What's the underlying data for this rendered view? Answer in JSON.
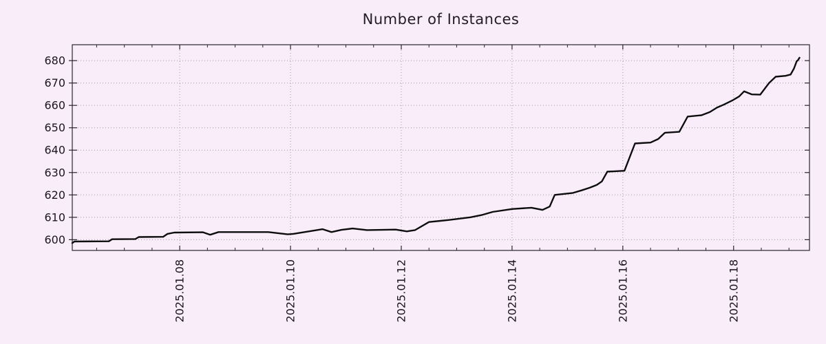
{
  "colors": {
    "background": "#f9edf9",
    "line": "#0d0d0d",
    "grid": "#a39aa3",
    "border": "#2a2430",
    "text": "#1c1522"
  },
  "chart_data": {
    "type": "line",
    "title": "Number of Instances",
    "xlabel": "",
    "ylabel": "",
    "legend": "none",
    "grid": "dotted",
    "x_axis": {
      "kind": "time",
      "unit": "day of 2025-01",
      "range": [
        6.06,
        19.37
      ],
      "tick_positions": [
        8,
        10,
        12,
        14,
        16,
        18
      ],
      "tick_labels": [
        "2025.01.08",
        "2025.01.10",
        "2025.01.12",
        "2025.01.14",
        "2025.01.16",
        "2025.01.18"
      ],
      "minor_tick_step": 0.5,
      "label_rotation_deg": -90
    },
    "y_axis": {
      "range": [
        595.2,
        687.1
      ],
      "tick_positions": [
        600,
        610,
        620,
        630,
        640,
        650,
        660,
        670,
        680
      ],
      "tick_labels": [
        "600",
        "610",
        "620",
        "630",
        "640",
        "650",
        "660",
        "670",
        "680"
      ]
    },
    "series": [
      {
        "color": "#0d0d0d",
        "points": [
          [
            6.06,
            598.5
          ],
          [
            6.1,
            599.2
          ],
          [
            6.72,
            599.3
          ],
          [
            6.78,
            600.2
          ],
          [
            7.2,
            600.3
          ],
          [
            7.26,
            601.2
          ],
          [
            7.7,
            601.3
          ],
          [
            7.78,
            602.6
          ],
          [
            7.9,
            603.2
          ],
          [
            8.42,
            603.3
          ],
          [
            8.55,
            602.2
          ],
          [
            8.7,
            603.4
          ],
          [
            9.6,
            603.4
          ],
          [
            9.95,
            602.4
          ],
          [
            10.05,
            602.6
          ],
          [
            10.4,
            604.0
          ],
          [
            10.58,
            604.7
          ],
          [
            10.74,
            603.4
          ],
          [
            10.92,
            604.4
          ],
          [
            11.12,
            605.0
          ],
          [
            11.38,
            604.3
          ],
          [
            11.9,
            604.5
          ],
          [
            12.1,
            603.7
          ],
          [
            12.25,
            604.3
          ],
          [
            12.5,
            607.9
          ],
          [
            12.85,
            608.8
          ],
          [
            13.25,
            610.0
          ],
          [
            13.45,
            611.0
          ],
          [
            13.65,
            612.4
          ],
          [
            14.0,
            613.7
          ],
          [
            14.35,
            614.3
          ],
          [
            14.55,
            613.3
          ],
          [
            14.68,
            614.8
          ],
          [
            14.77,
            620.0
          ],
          [
            15.1,
            620.9
          ],
          [
            15.25,
            622.0
          ],
          [
            15.4,
            623.2
          ],
          [
            15.53,
            624.5
          ],
          [
            15.62,
            626.0
          ],
          [
            15.72,
            630.4
          ],
          [
            16.03,
            630.8
          ],
          [
            16.22,
            643.0
          ],
          [
            16.5,
            643.4
          ],
          [
            16.64,
            645.0
          ],
          [
            16.76,
            647.8
          ],
          [
            17.02,
            648.2
          ],
          [
            17.17,
            655.0
          ],
          [
            17.42,
            655.6
          ],
          [
            17.57,
            657.0
          ],
          [
            17.7,
            659.0
          ],
          [
            17.82,
            660.3
          ],
          [
            17.99,
            662.4
          ],
          [
            18.1,
            664.0
          ],
          [
            18.19,
            666.3
          ],
          [
            18.33,
            664.9
          ],
          [
            18.48,
            664.8
          ],
          [
            18.64,
            670.0
          ],
          [
            18.76,
            672.8
          ],
          [
            18.94,
            673.2
          ],
          [
            19.03,
            673.8
          ],
          [
            19.09,
            676.5
          ],
          [
            19.14,
            679.8
          ],
          [
            19.16,
            680.1
          ],
          [
            19.19,
            681.3
          ]
        ]
      }
    ]
  }
}
